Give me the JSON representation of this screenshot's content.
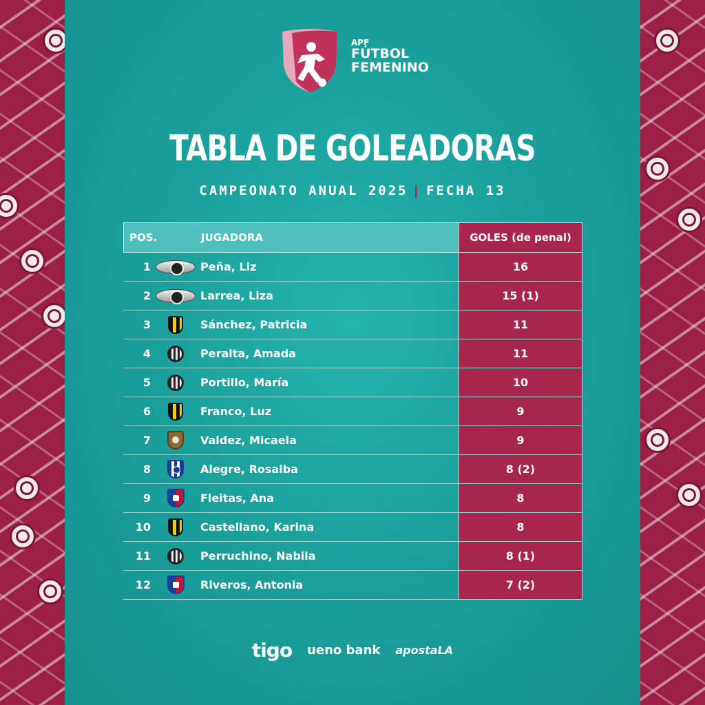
{
  "logo": {
    "line1": "APF",
    "line2": "FÚTBOL",
    "line3": "FEMENINO",
    "colors": {
      "shield": "#c0315c",
      "shield_light": "#e6a8bb"
    }
  },
  "title": "TABLA DE GOLEADORAS",
  "subtitle": {
    "left": "CAMPEONATO ANUAL 2025",
    "separator": "|",
    "right": "FECHA 13"
  },
  "table": {
    "headers": {
      "pos": "POS.",
      "player": "JUGADORA",
      "goals": "GOLES (de penal)"
    },
    "rows": [
      {
        "pos": "1",
        "crest": "olimpia-wings-crest",
        "player": "Peña, Liz",
        "goals": "16"
      },
      {
        "pos": "2",
        "crest": "olimpia-wings-crest",
        "player": "Larrea, Liza",
        "goals": "15 (1)"
      },
      {
        "pos": "3",
        "crest": "guarani-crest",
        "player": "Sánchez, Patricia",
        "goals": "11"
      },
      {
        "pos": "4",
        "crest": "olimpia-round-crest",
        "player": "Peralta, Amada",
        "goals": "11"
      },
      {
        "pos": "5",
        "crest": "olimpia-round-crest",
        "player": "Portillo, María",
        "goals": "10"
      },
      {
        "pos": "6",
        "crest": "guarani-crest",
        "player": "Franco, Luz",
        "goals": "9"
      },
      {
        "pos": "7",
        "crest": "tacuary-crest",
        "player": "Valdez, Micaela",
        "goals": "9"
      },
      {
        "pos": "8",
        "crest": "ameliano-crest",
        "player": "Alegre, Rosalba",
        "goals": "8 (2)"
      },
      {
        "pos": "9",
        "crest": "cerro-crest",
        "player": "Fleitas, Ana",
        "goals": "8"
      },
      {
        "pos": "10",
        "crest": "guarani-crest",
        "player": "Castellano, Karina",
        "goals": "8"
      },
      {
        "pos": "11",
        "crest": "olimpia-round-crest",
        "player": "Perruchino, Nabila",
        "goals": "8 (1)"
      },
      {
        "pos": "12",
        "crest": "cerro-crest",
        "player": "Riveros, Antonia",
        "goals": "7 (2)"
      }
    ]
  },
  "sponsors": [
    "tigo",
    "ueno bank",
    "apostaLA"
  ],
  "colors": {
    "panel": "#1a9d99",
    "header": "#4fc0bd",
    "goals_column": "#a8254d",
    "side": "#9b1f47"
  }
}
